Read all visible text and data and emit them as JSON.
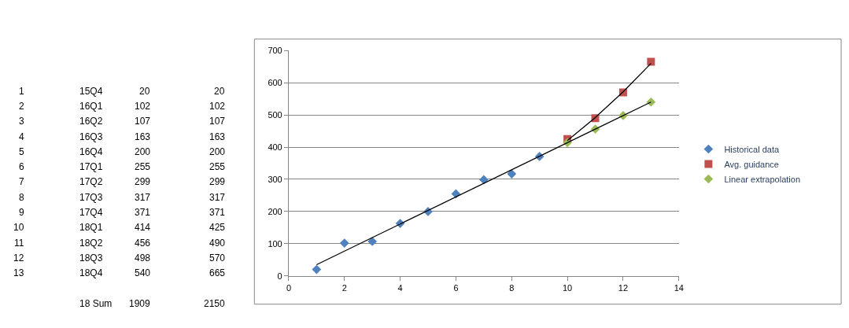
{
  "chart_data": {
    "type": "scatter",
    "series": [
      {
        "name": "Historical data",
        "color": "#4f81bd",
        "marker": "diamond",
        "x": [
          1,
          2,
          3,
          4,
          5,
          6,
          7,
          8,
          9
        ],
        "values": [
          20,
          102,
          107,
          163,
          200,
          255,
          299,
          317,
          371
        ]
      },
      {
        "name": "Avg. guidance",
        "color": "#c0504d",
        "marker": "square",
        "x": [
          10,
          11,
          12,
          13
        ],
        "values": [
          425,
          490,
          570,
          665
        ]
      },
      {
        "name": "Linear extrapolation",
        "color": "#9bbb59",
        "marker": "diamond",
        "x": [
          10,
          11,
          12,
          13
        ],
        "values": [
          414,
          456,
          498,
          540
        ]
      },
      {
        "type": "line",
        "color": "#000000",
        "marker": "none",
        "x": [
          1,
          13
        ],
        "values": [
          35,
          540
        ]
      },
      {
        "type": "line",
        "color": "#000000",
        "marker": "none",
        "x": [
          10,
          11,
          12,
          13
        ],
        "values": [
          420,
          492,
          572,
          660
        ]
      }
    ],
    "xlim": [
      0,
      14
    ],
    "xticks": [
      0,
      2,
      4,
      6,
      8,
      10,
      12,
      14
    ],
    "ylim": [
      0,
      700
    ],
    "yticks": [
      0,
      100,
      200,
      300,
      400,
      500,
      600,
      700
    ],
    "grid": "y",
    "legend": "right",
    "annotations": [
      "1",
      "15Q4",
      "20",
      "20",
      "2",
      "16Q1",
      "102",
      "102",
      "3",
      "16Q2",
      "107",
      "107",
      "4",
      "16Q3",
      "163",
      "163",
      "5",
      "16Q4",
      "200",
      "200",
      "6",
      "17Q1",
      "255",
      "255",
      "7",
      "17Q2",
      "299",
      "299",
      "8",
      "17Q3",
      "317",
      "317",
      "9",
      "17Q4",
      "371",
      "371",
      "10",
      "18Q1",
      "414",
      "425",
      "11",
      "18Q2",
      "456",
      "490",
      "12",
      "18Q3",
      "498",
      "570",
      "13",
      "18Q4",
      "540",
      "665",
      "18 Sum",
      "1909",
      "2150"
    ]
  }
}
